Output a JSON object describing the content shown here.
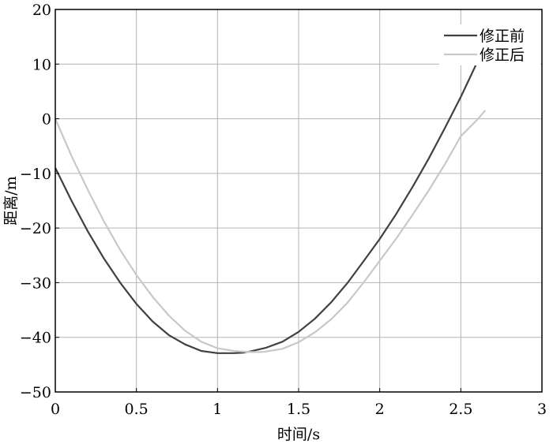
{
  "chart_data": {
    "type": "line",
    "title": "",
    "xlabel": "时间/s",
    "ylabel": "距离/m",
    "xlim": [
      0,
      3
    ],
    "ylim": [
      -50,
      20
    ],
    "xticks": [
      0,
      0.5,
      1,
      1.5,
      2,
      2.5,
      3
    ],
    "xtick_labels": [
      "0",
      "0.5",
      "1",
      "1.5",
      "2",
      "2.5",
      "3"
    ],
    "yticks": [
      -50,
      -40,
      -30,
      -20,
      -10,
      0,
      10,
      20
    ],
    "ytick_labels": [
      "−50",
      "−40",
      "−30",
      "−20",
      "−10",
      "0",
      "10",
      "20"
    ],
    "grid": true,
    "legend_position": "top-right",
    "series": [
      {
        "name": "修正前",
        "color": "#404040",
        "x": [
          0,
          0.1,
          0.2,
          0.3,
          0.4,
          0.5,
          0.6,
          0.7,
          0.8,
          0.9,
          1.0,
          1.1,
          1.16,
          1.2,
          1.3,
          1.4,
          1.5,
          1.6,
          1.7,
          1.8,
          1.9,
          2.0,
          2.1,
          2.2,
          2.3,
          2.4,
          2.5,
          2.6,
          2.65
        ],
        "y": [
          -9.0,
          -15.0,
          -20.6,
          -25.6,
          -30.0,
          -33.9,
          -37.1,
          -39.6,
          -41.3,
          -42.5,
          -42.9,
          -42.9,
          -42.8,
          -42.6,
          -41.9,
          -40.8,
          -39.0,
          -36.6,
          -33.6,
          -30.1,
          -26.1,
          -22.0,
          -17.5,
          -12.6,
          -7.4,
          -1.8,
          4.0,
          10.3,
          13.0
        ]
      },
      {
        "name": "修正后",
        "color": "#c8c8c8",
        "x": [
          0,
          0.1,
          0.2,
          0.3,
          0.4,
          0.5,
          0.6,
          0.7,
          0.8,
          0.9,
          1.0,
          1.1,
          1.2,
          1.27,
          1.3,
          1.4,
          1.5,
          1.6,
          1.7,
          1.8,
          1.9,
          2.0,
          2.1,
          2.2,
          2.3,
          2.4,
          2.5,
          2.6,
          2.65
        ],
        "y": [
          0.0,
          -6.8,
          -13.0,
          -18.8,
          -24.0,
          -28.6,
          -32.6,
          -36.0,
          -38.8,
          -40.8,
          -42.0,
          -42.5,
          -42.7,
          -42.7,
          -42.6,
          -42.1,
          -40.9,
          -39.1,
          -36.7,
          -33.7,
          -30.0,
          -26.0,
          -22.0,
          -17.7,
          -13.2,
          -8.4,
          -3.2,
          -0.2,
          1.5
        ]
      }
    ]
  }
}
